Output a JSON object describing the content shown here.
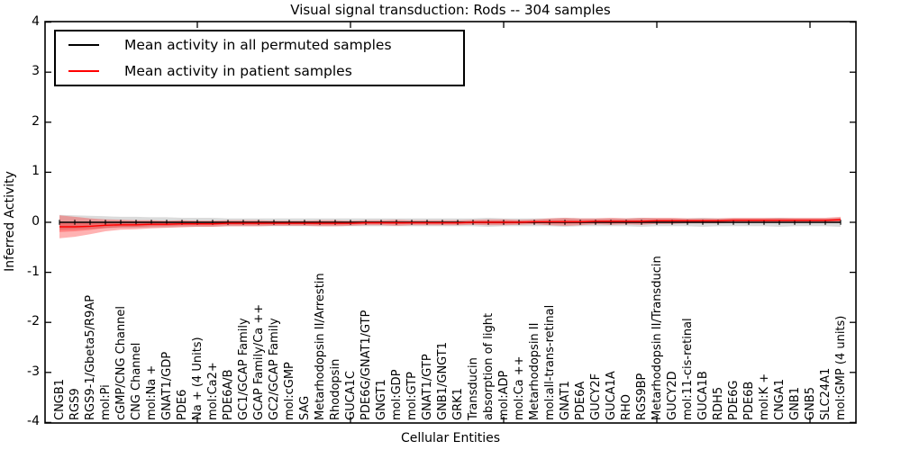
{
  "title": "Visual signal transduction: Rods -- 304 samples",
  "axes": {
    "ylabel": "Inferred Activity",
    "xlabel": "Cellular Entities",
    "ytick_labels": [
      "4",
      "3",
      "2",
      "1",
      "0",
      "-1",
      "-2",
      "-3",
      "-4"
    ],
    "ytick_values": [
      4,
      3,
      2,
      1,
      0,
      -1,
      -2,
      -3,
      -4
    ]
  },
  "legend": {
    "entries": [
      {
        "label": "Mean activity in all permuted samples",
        "color": "#000000"
      },
      {
        "label": "Mean activity in patient samples",
        "color": "#ff0000"
      }
    ]
  },
  "chart_data": {
    "type": "line",
    "title": "Visual signal transduction: Rods -- 304 samples",
    "xlabel": "Cellular Entities",
    "ylabel": "Inferred Activity",
    "ylim": [
      -4,
      4
    ],
    "grid": false,
    "legend_position": "upper-left",
    "unlabeled_xtick_positions": [
      10,
      20,
      30,
      40,
      50
    ],
    "categories": [
      "CNGB1",
      "RGS9",
      "RGS9-1/Gbeta5/R9AP",
      "mol:Pi",
      "cGMP/CNG Channel",
      "CNG Channel",
      "mol:Na +",
      "GNAT1/GDP",
      "PDE6",
      "Na + (4 Units)",
      "mol:Ca2+",
      "PDE6A/B",
      "GC1/GCAP Family",
      "GCAP Family/Ca ++",
      "GC2/GCAP Family",
      "mol:cGMP",
      "SAG",
      "Metarhodopsin II/Arrestin",
      "Rhodopsin",
      "GUCA1C",
      "PDE6G/GNAT1/GTP",
      "GNGT1",
      "mol:GDP",
      "mol:GTP",
      "GNAT1/GTP",
      "GNB1/GNGT1",
      "GRK1",
      "Transducin",
      "absorption of light",
      "mol:ADP",
      "mol:Ca ++",
      "Metarhodopsin II",
      "mol:all-trans-retinal",
      "GNAT1",
      "PDE6A",
      "GUCY2F",
      "GUCA1A",
      "RHO",
      "RGS9BP",
      "Metarhodopsin II/Transducin",
      "GUCY2D",
      "mol:11-cis-retinal",
      "GUCA1B",
      "RDH5",
      "PDE6G",
      "PDE6B",
      "mol:K +",
      "CNGA1",
      "GNB1",
      "GNB5",
      "SLC24A1",
      "mol:GMP (4 units)"
    ],
    "series": [
      {
        "name": "Mean activity in all permuted samples",
        "color": "#000000",
        "marker": "tick",
        "values": [
          0,
          0,
          0,
          0,
          0,
          0,
          0,
          0,
          0,
          0,
          0,
          0,
          0,
          0,
          0,
          0,
          0,
          0,
          0,
          0,
          0,
          0,
          0,
          0,
          0,
          0,
          0,
          0,
          0,
          0,
          0,
          0,
          0,
          0,
          0,
          0,
          0,
          0,
          0,
          0,
          0,
          0,
          0,
          0,
          0,
          0,
          0,
          0,
          0,
          0,
          0,
          0
        ],
        "band_halfwidth": [
          0.15,
          0.14,
          0.13,
          0.12,
          0.11,
          0.11,
          0.1,
          0.1,
          0.09,
          0.09,
          0.09,
          0.08,
          0.08,
          0.08,
          0.08,
          0.08,
          0.08,
          0.08,
          0.08,
          0.08,
          0.08,
          0.08,
          0.08,
          0.08,
          0.08,
          0.08,
          0.08,
          0.08,
          0.09,
          0.08,
          0.08,
          0.08,
          0.08,
          0.09,
          0.08,
          0.08,
          0.08,
          0.08,
          0.09,
          0.08,
          0.08,
          0.08,
          0.09,
          0.08,
          0.08,
          0.08,
          0.08,
          0.09,
          0.08,
          0.08,
          0.08,
          0.09
        ],
        "band_color": "rgba(0,0,0,0.14)"
      },
      {
        "name": "Mean activity in patient samples",
        "color": "#ff0000",
        "marker": "none",
        "values": [
          -0.09,
          -0.09,
          -0.08,
          -0.06,
          -0.05,
          -0.05,
          -0.04,
          -0.04,
          -0.03,
          -0.03,
          -0.03,
          -0.02,
          -0.02,
          -0.02,
          -0.02,
          -0.02,
          -0.02,
          -0.02,
          -0.02,
          -0.02,
          -0.01,
          -0.01,
          -0.01,
          -0.01,
          -0.01,
          -0.01,
          -0.01,
          0,
          0,
          0,
          0,
          0.01,
          0.01,
          0.01,
          0.01,
          0.02,
          0.02,
          0.02,
          0.02,
          0.03,
          0.03,
          0.03,
          0.03,
          0.03,
          0.04,
          0.04,
          0.04,
          0.04,
          0.04,
          0.04,
          0.04,
          0.05
        ],
        "band_halfwidth": [
          0.23,
          0.2,
          0.16,
          0.12,
          0.1,
          0.09,
          0.08,
          0.07,
          0.07,
          0.06,
          0.06,
          0.06,
          0.06,
          0.06,
          0.05,
          0.05,
          0.05,
          0.06,
          0.06,
          0.05,
          0.05,
          0.05,
          0.06,
          0.05,
          0.05,
          0.05,
          0.05,
          0.05,
          0.06,
          0.06,
          0.05,
          0.05,
          0.07,
          0.08,
          0.07,
          0.06,
          0.07,
          0.06,
          0.07,
          0.06,
          0.06,
          0.05,
          0.05,
          0.05,
          0.05,
          0.05,
          0.05,
          0.05,
          0.05,
          0.05,
          0.05,
          0.06
        ],
        "band_color": "rgba(255,0,0,0.30)",
        "inner_band_ratio": 0.45,
        "inner_band_color": "rgba(255,0,0,0.28)"
      }
    ]
  }
}
